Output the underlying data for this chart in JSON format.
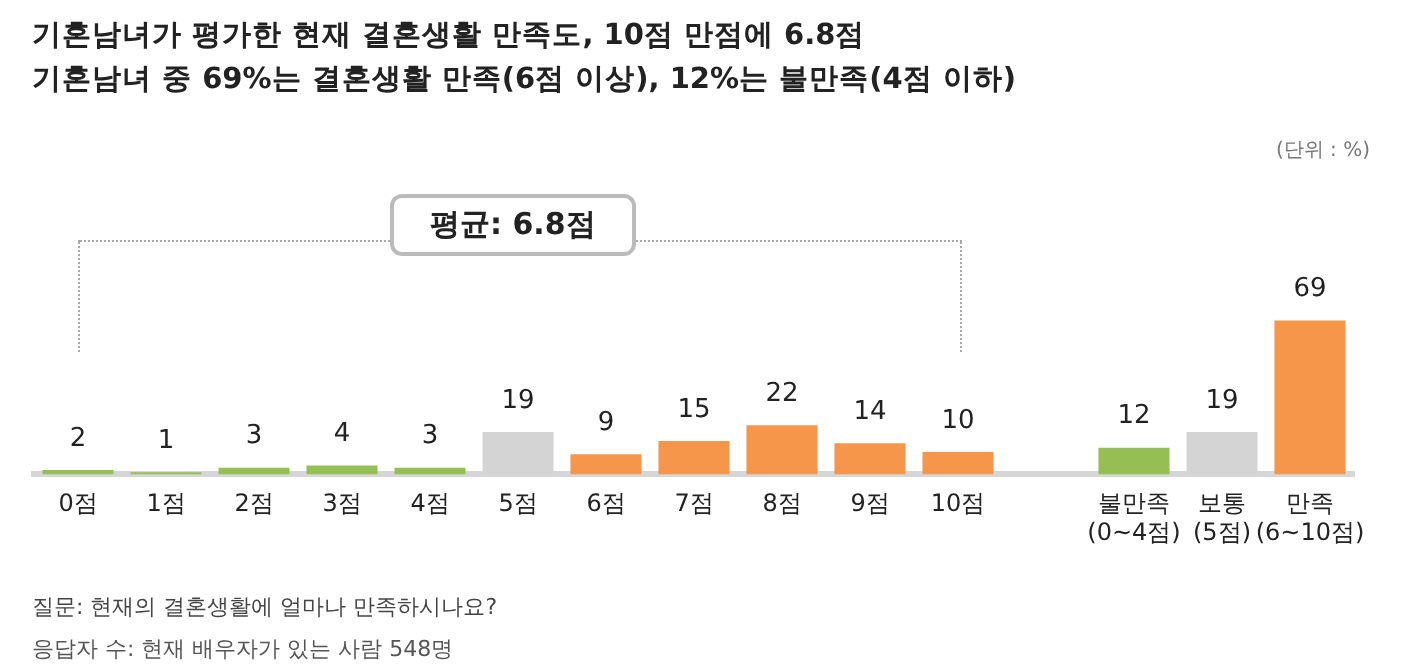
{
  "chart_data": {
    "type": "bar",
    "title": "기혼남녀가 평가한 현재 결혼생활 만족도, 10점 만점에 6.8점",
    "subtitle": "기혼남녀 중 69%는 결혼생활 만족(6점 이상), 12%는 불만족(4점 이하)",
    "categories": [
      "0점",
      "1점",
      "2점",
      "3점",
      "4점",
      "5점",
      "6점",
      "7점",
      "8점",
      "9점",
      "10점",
      null,
      "불만족 (0~4점)",
      "보통 (5점)",
      "만족 (6~10점)"
    ],
    "values": [
      2,
      1,
      3,
      4,
      3,
      19,
      9,
      15,
      22,
      14,
      10,
      null,
      12,
      19,
      69
    ],
    "colors": [
      "#95bf55",
      "#95bf55",
      "#95bf55",
      "#95bf55",
      "#95bf55",
      "#d4d4d4",
      "#f5964a",
      "#f5964a",
      "#f5964a",
      "#f5964a",
      "#f5964a",
      null,
      "#95bf55",
      "#d4d4d4",
      "#f5964a"
    ],
    "data_labels": true,
    "legend": false,
    "annotations": [
      "(단위 : %)",
      "평균: 6.8점",
      "질문: 현재의 결혼생활에 얼마나 만족하시나요?",
      "응답자 수: 현재 배우자가 있는 사람 548명"
    ]
  }
}
